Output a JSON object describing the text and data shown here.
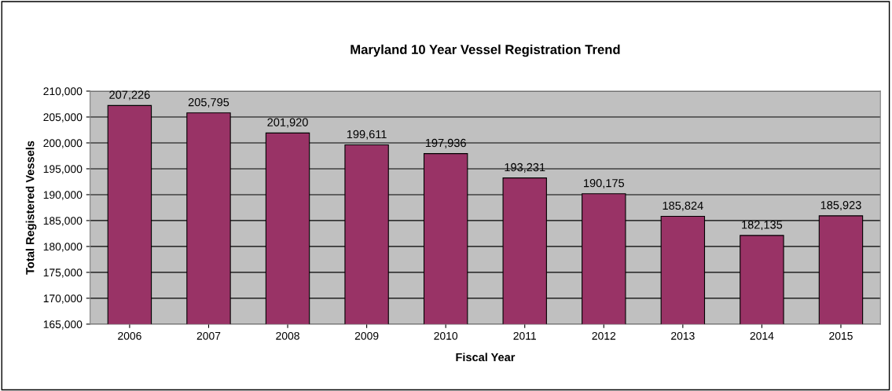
{
  "chart_data": {
    "type": "bar",
    "title": "Maryland 10 Year Vessel Registration Trend",
    "xlabel": "Fiscal Year",
    "ylabel": "Total Registered Vessels",
    "categories": [
      "2006",
      "2007",
      "2008",
      "2009",
      "2010",
      "2011",
      "2012",
      "2013",
      "2014",
      "2015"
    ],
    "values": [
      207226,
      205795,
      201920,
      199611,
      197936,
      193231,
      190175,
      185824,
      182135,
      185923
    ],
    "value_labels": [
      "207,226",
      "205,795",
      "201,920",
      "199,611",
      "197,936",
      "193,231",
      "190,175",
      "185,824",
      "182,135",
      "185,923"
    ],
    "color": "#993366",
    "ylim": [
      165000,
      210000
    ],
    "yticks": [
      {
        "value": 165000,
        "label": "165,000"
      },
      {
        "value": 170000,
        "label": "170,000"
      },
      {
        "value": 175000,
        "label": "175,000"
      },
      {
        "value": 180000,
        "label": "180,000"
      },
      {
        "value": 185000,
        "label": "185,000"
      },
      {
        "value": 190000,
        "label": "190,000"
      },
      {
        "value": 195000,
        "label": "195,000"
      },
      {
        "value": 200000,
        "label": "200,000"
      },
      {
        "value": 205000,
        "label": "205,000"
      },
      {
        "value": 210000,
        "label": "210,000"
      }
    ],
    "grid": "y",
    "legend": false
  }
}
